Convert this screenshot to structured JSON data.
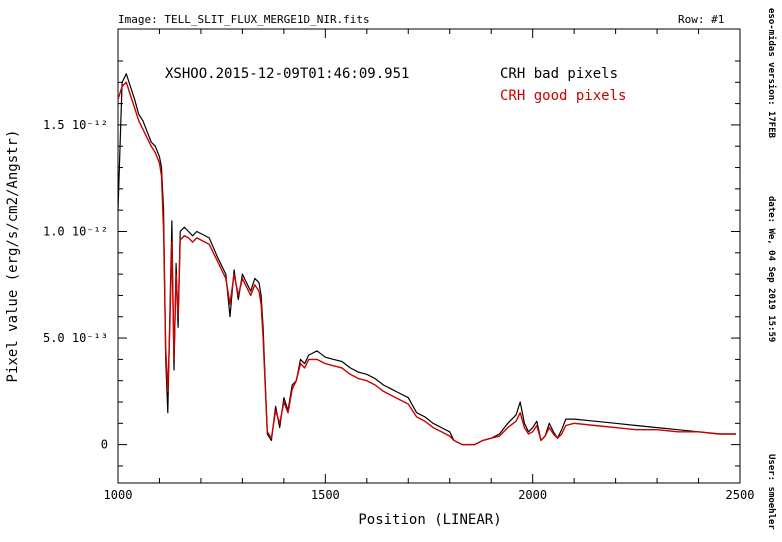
{
  "header": {
    "image_label": "Image:",
    "image_name": "TELL_SLIT_FLUX_MERGE1D_NIR.fits",
    "row_label": "Row:",
    "row_value": "#1"
  },
  "side_info": {
    "version": "eso-midas version: 17FEB",
    "date": "date: We, 04 Sep 2019 15:59",
    "user": "User: smoehler"
  },
  "colors": {
    "bad": "#000000",
    "good": "#cc0000",
    "axis": "#000000"
  },
  "chart_data": {
    "type": "line",
    "title": "XSHOO.2015-12-09T01:46:09.951",
    "xlabel": "Position (LINEAR)",
    "ylabel": "Pixel value (erg/s/cm2/Angstr)",
    "xlim": [
      1000,
      2500
    ],
    "ylim": [
      -1.8e-13,
      1.95e-12
    ],
    "xticks": [
      {
        "value": 1000,
        "label": "1000"
      },
      {
        "value": 1500,
        "label": "1500"
      },
      {
        "value": 2000,
        "label": "2000"
      },
      {
        "value": 2500,
        "label": "2500"
      }
    ],
    "yticks": [
      {
        "value": 0,
        "label": "0"
      },
      {
        "value": 5e-13,
        "label": "5.0 10⁻¹³"
      },
      {
        "value": 1e-12,
        "label": "1.0 10⁻¹²"
      },
      {
        "value": 1.5e-12,
        "label": "1.5 10⁻¹²"
      }
    ],
    "legend": [
      {
        "name": "CRH bad pixels",
        "color": "#000000"
      },
      {
        "name": "CRH good pixels",
        "color": "#cc0000"
      }
    ],
    "series": [
      {
        "name": "CRH bad pixels",
        "color": "#000000",
        "x": [
          1000,
          1010,
          1020,
          1030,
          1040,
          1050,
          1060,
          1070,
          1080,
          1090,
          1100,
          1105,
          1110,
          1115,
          1120,
          1125,
          1130,
          1135,
          1140,
          1145,
          1150,
          1160,
          1170,
          1180,
          1190,
          1200,
          1220,
          1240,
          1260,
          1270,
          1280,
          1290,
          1300,
          1310,
          1320,
          1330,
          1340,
          1345,
          1350,
          1360,
          1370,
          1380,
          1390,
          1400,
          1410,
          1420,
          1430,
          1440,
          1450,
          1460,
          1470,
          1480,
          1500,
          1520,
          1540,
          1560,
          1580,
          1600,
          1620,
          1640,
          1660,
          1680,
          1700,
          1720,
          1740,
          1760,
          1780,
          1800,
          1810,
          1820,
          1830,
          1840,
          1860,
          1880,
          1900,
          1920,
          1940,
          1960,
          1970,
          1980,
          1990,
          2000,
          2010,
          2020,
          2030,
          2040,
          2050,
          2060,
          2070,
          2080,
          2100,
          2150,
          2200,
          2250,
          2300,
          2350,
          2400,
          2450,
          2490
        ],
        "y": [
          1.1,
          1.7,
          1.74,
          1.68,
          1.62,
          1.55,
          1.52,
          1.47,
          1.42,
          1.4,
          1.35,
          1.3,
          1.1,
          0.4,
          0.15,
          0.6,
          1.05,
          0.35,
          0.85,
          0.55,
          1.0,
          1.02,
          1.0,
          0.98,
          1.0,
          0.99,
          0.97,
          0.88,
          0.8,
          0.6,
          0.82,
          0.68,
          0.8,
          0.76,
          0.72,
          0.78,
          0.76,
          0.7,
          0.55,
          0.05,
          0.02,
          0.18,
          0.08,
          0.22,
          0.16,
          0.28,
          0.3,
          0.4,
          0.38,
          0.42,
          0.43,
          0.44,
          0.41,
          0.4,
          0.39,
          0.36,
          0.34,
          0.33,
          0.31,
          0.28,
          0.26,
          0.24,
          0.22,
          0.15,
          0.13,
          0.1,
          0.08,
          0.06,
          0.02,
          0.01,
          0.0,
          0.0,
          0.0,
          0.02,
          0.03,
          0.05,
          0.1,
          0.14,
          0.2,
          0.1,
          0.06,
          0.08,
          0.11,
          0.02,
          0.04,
          0.1,
          0.06,
          0.03,
          0.07,
          0.12,
          0.12,
          0.11,
          0.1,
          0.09,
          0.08,
          0.07,
          0.06,
          0.05,
          0.05
        ]
      },
      {
        "name": "CRH good pixels",
        "color": "#cc0000",
        "x": [
          1000,
          1010,
          1020,
          1030,
          1040,
          1050,
          1060,
          1070,
          1080,
          1090,
          1100,
          1105,
          1110,
          1115,
          1120,
          1125,
          1130,
          1135,
          1140,
          1145,
          1150,
          1160,
          1170,
          1180,
          1190,
          1200,
          1220,
          1240,
          1260,
          1270,
          1280,
          1290,
          1300,
          1310,
          1320,
          1330,
          1340,
          1345,
          1350,
          1360,
          1370,
          1380,
          1390,
          1400,
          1410,
          1420,
          1430,
          1440,
          1450,
          1460,
          1470,
          1480,
          1500,
          1520,
          1540,
          1560,
          1580,
          1600,
          1620,
          1640,
          1660,
          1680,
          1700,
          1720,
          1740,
          1760,
          1780,
          1800,
          1810,
          1820,
          1830,
          1840,
          1860,
          1880,
          1900,
          1920,
          1940,
          1960,
          1970,
          1980,
          1990,
          2000,
          2010,
          2020,
          2030,
          2040,
          2050,
          2060,
          2070,
          2080,
          2100,
          2150,
          2200,
          2250,
          2300,
          2350,
          2400,
          2450,
          2490
        ],
        "y": [
          1.62,
          1.68,
          1.7,
          1.64,
          1.58,
          1.52,
          1.48,
          1.44,
          1.4,
          1.37,
          1.32,
          1.26,
          1.0,
          0.45,
          0.25,
          0.55,
          0.95,
          0.4,
          0.8,
          0.6,
          0.96,
          0.98,
          0.97,
          0.95,
          0.97,
          0.96,
          0.94,
          0.86,
          0.78,
          0.66,
          0.8,
          0.7,
          0.78,
          0.74,
          0.7,
          0.75,
          0.72,
          0.66,
          0.5,
          0.06,
          0.03,
          0.16,
          0.1,
          0.2,
          0.15,
          0.26,
          0.3,
          0.38,
          0.36,
          0.4,
          0.4,
          0.4,
          0.38,
          0.37,
          0.36,
          0.33,
          0.31,
          0.3,
          0.28,
          0.25,
          0.23,
          0.21,
          0.19,
          0.13,
          0.11,
          0.08,
          0.06,
          0.04,
          0.02,
          0.01,
          0.0,
          0.0,
          0.0,
          0.02,
          0.03,
          0.04,
          0.08,
          0.11,
          0.15,
          0.08,
          0.05,
          0.06,
          0.09,
          0.02,
          0.04,
          0.08,
          0.05,
          0.03,
          0.05,
          0.09,
          0.1,
          0.09,
          0.08,
          0.07,
          0.07,
          0.06,
          0.06,
          0.05,
          0.05
        ]
      }
    ],
    "y_scale": 1e-12
  }
}
